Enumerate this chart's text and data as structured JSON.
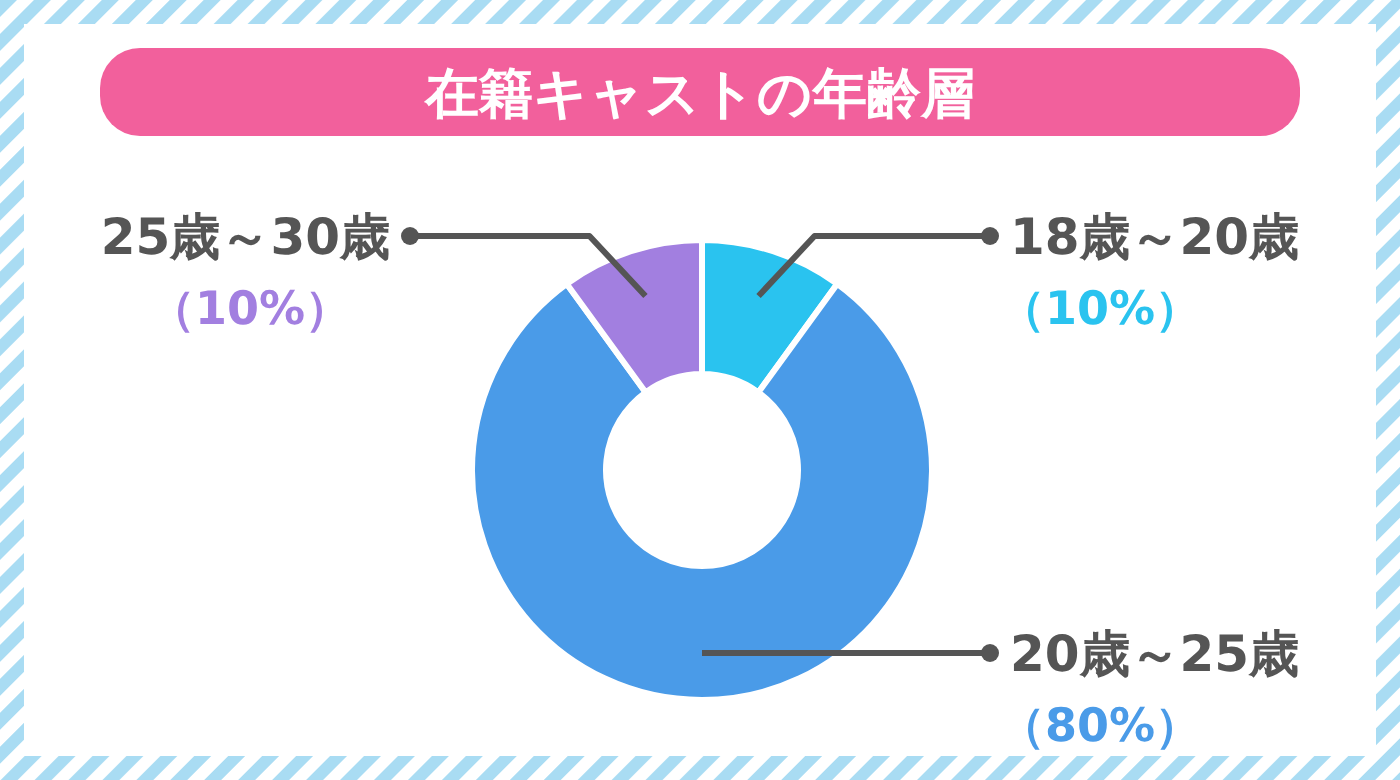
{
  "chart_data": {
    "type": "donut",
    "title": "在籍キャストの年齢層",
    "categories": [
      "18歳～20歳",
      "20歳～25歳",
      "25歳～30歳"
    ],
    "values": [
      10,
      80,
      10
    ],
    "colors": [
      "#2ac3ef",
      "#4a9be8",
      "#a27fe0"
    ],
    "value_labels": [
      "（10%）",
      "（80%）",
      "（10%）"
    ]
  }
}
